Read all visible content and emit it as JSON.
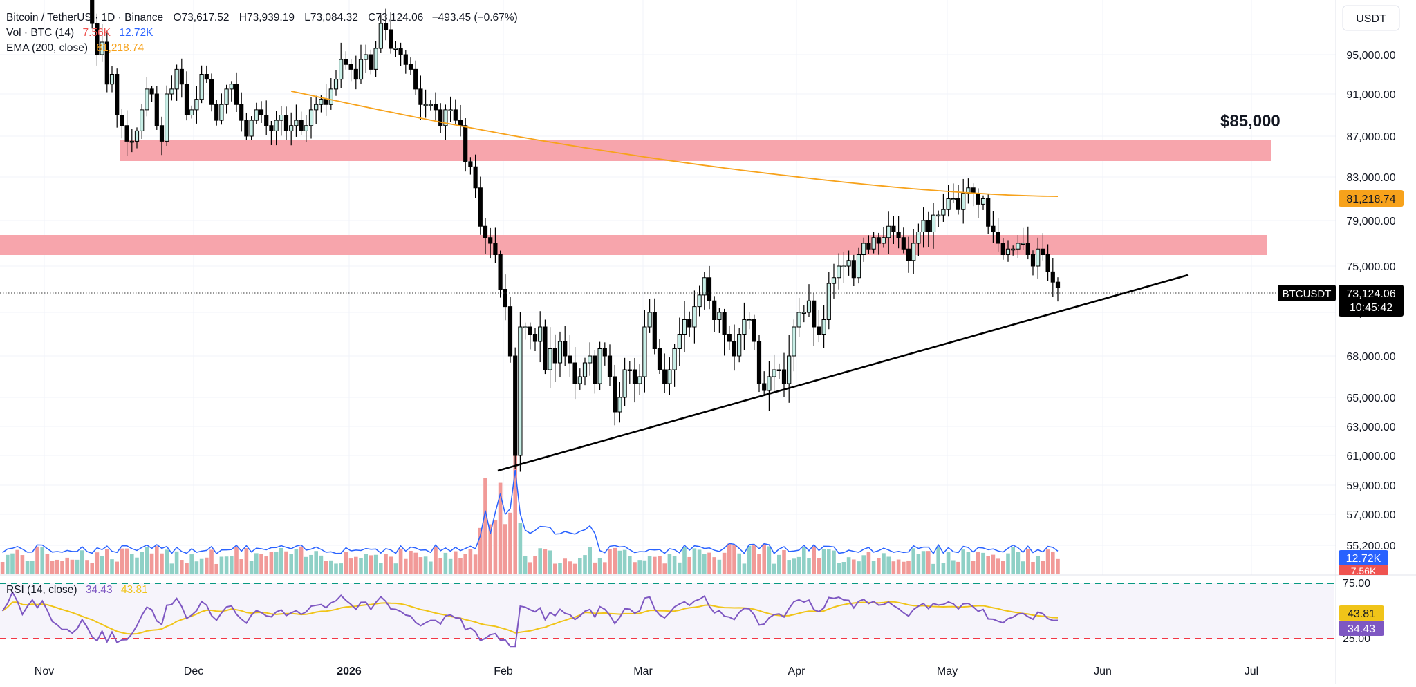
{
  "legend": {
    "symbol": "Bitcoin / TetherUS · 1D · Binance",
    "open": "O73,617.52",
    "high": "H73,939.19",
    "low": "L73,084.32",
    "close": "C73,124.06",
    "change": "−493.45 (−0.67%)",
    "vol_label": "Vol · BTC (14)",
    "vol_value_1": "7.56K",
    "vol_value_2": "12.72K",
    "ema_label": "EMA (200, close)",
    "ema_value": "81,218.74",
    "rsi_label": "RSI (14, close)",
    "rsi_value": "34.43",
    "rsi_ma_value": "43.81"
  },
  "currency": "USDT",
  "annotations": {
    "resistance_label": "$85,000"
  },
  "price_badges": {
    "ema": "81,218.74",
    "symbol": "BTCUSDT",
    "last": "73,124.06",
    "countdown": "10:45:42",
    "vol_ma": "12.72K",
    "vol": "7.56K",
    "rsi_ma": "43.81",
    "rsi": "34.43"
  },
  "colors": {
    "up": "#26a69a",
    "down": "#ef5350",
    "ema": "#f7a21b",
    "zone": "#f7a0a8",
    "vol_ma": "#2962ff",
    "rsi": "#7e57c2",
    "rsi_ma": "#f0c419",
    "overbought": "#089981",
    "oversold": "#f23645"
  },
  "chart_data": {
    "type": "candlestick",
    "x_labels": [
      "Nov",
      "Dec",
      "2026",
      "Feb",
      "Mar",
      "Apr",
      "May",
      "Jun",
      "Jul"
    ],
    "y_ticks": [
      "95,000.00",
      "91,000.00",
      "87,000.00",
      "83,000.00",
      "79,000.00",
      "75,000.00",
      "71,000.00",
      "68,000.00",
      "65,000.00",
      "63,000.00",
      "61,000.00",
      "59,000.00",
      "57,000.00",
      "55,200.00"
    ],
    "rsi_ticks": [
      "75.00",
      "25.00"
    ],
    "start_date": "2025-10-20",
    "ohlc_close": [
      108000,
      110000,
      113500,
      112000,
      109000,
      111000,
      113000,
      111500,
      113500,
      111500,
      108500,
      107000,
      105000,
      104000,
      102000,
      102000,
      103500,
      101000,
      97500,
      95000,
      96000,
      92000,
      93000,
      89000,
      88000,
      86500,
      86500,
      87500,
      89500,
      91500,
      91000,
      88000,
      86500,
      91000,
      91500,
      93500,
      92000,
      89000,
      89500,
      90500,
      93000,
      92500,
      90000,
      88500,
      90000,
      91500,
      92000,
      90000,
      88500,
      87000,
      88500,
      89500,
      89000,
      88000,
      87500,
      88500,
      89000,
      87500,
      88000,
      88500,
      87500,
      88000,
      89500,
      90000,
      90500,
      90000,
      91500,
      92500,
      94500,
      94000,
      93500,
      92500,
      94500,
      95000,
      93500,
      95500,
      97500,
      97000,
      95500,
      95500,
      95000,
      94000,
      93500,
      91500,
      90000,
      90000,
      90000,
      89500,
      88000,
      89500,
      89500,
      88500,
      88000,
      84500,
      84000,
      82000,
      78500,
      77500,
      77000,
      76000,
      73000,
      71500,
      68000,
      61000,
      70000,
      70000,
      69500,
      69000,
      70000,
      67000,
      68500,
      67500,
      69000,
      68000,
      67500,
      66000,
      66500,
      67500,
      68000,
      66000,
      68500,
      68000,
      66500,
      64000,
      65000,
      67000,
      67000,
      66000,
      66500,
      70000,
      71000,
      68500,
      67000,
      66000,
      67000,
      68500,
      69500,
      70500,
      70000,
      71500,
      72500,
      74000,
      72000,
      70500,
      71000,
      69500,
      69000,
      68000,
      69500,
      70500,
      70500,
      69000,
      66000,
      65500,
      66500,
      67000,
      67000,
      66000,
      68000,
      70000,
      71000,
      71000,
      72000,
      70000,
      69500,
      70500,
      73500,
      74000,
      75000,
      75000,
      75500,
      74000,
      76000,
      77000,
      76500,
      77500,
      77000,
      77500,
      78500,
      78000,
      77500,
      76500,
      75500,
      77000,
      78000,
      79000,
      78000,
      79500,
      79500,
      80000,
      81000,
      81000,
      80000,
      81500,
      82000,
      81500,
      80500,
      81000,
      78500,
      78000,
      77000,
      76000,
      76500,
      76500,
      77000,
      77000,
      76000,
      75000,
      76500,
      76000,
      74500,
      73617,
      73124
    ],
    "ema_200_start": 98000,
    "ema_200_end": 81218.74,
    "volume_btc_k_approx": "range 4K–36K, spike at Feb sell-off",
    "rsi_14_last": 34.43,
    "rsi_ma_last": 43.81,
    "resistance_zones": [
      [
        85000,
        87000
      ],
      [
        76500,
        78500
      ]
    ],
    "trendline": {
      "from": [
        "Feb",
        60500
      ],
      "to": [
        "Jun",
        74500
      ]
    },
    "ylim": [
      55200,
      98000
    ]
  }
}
